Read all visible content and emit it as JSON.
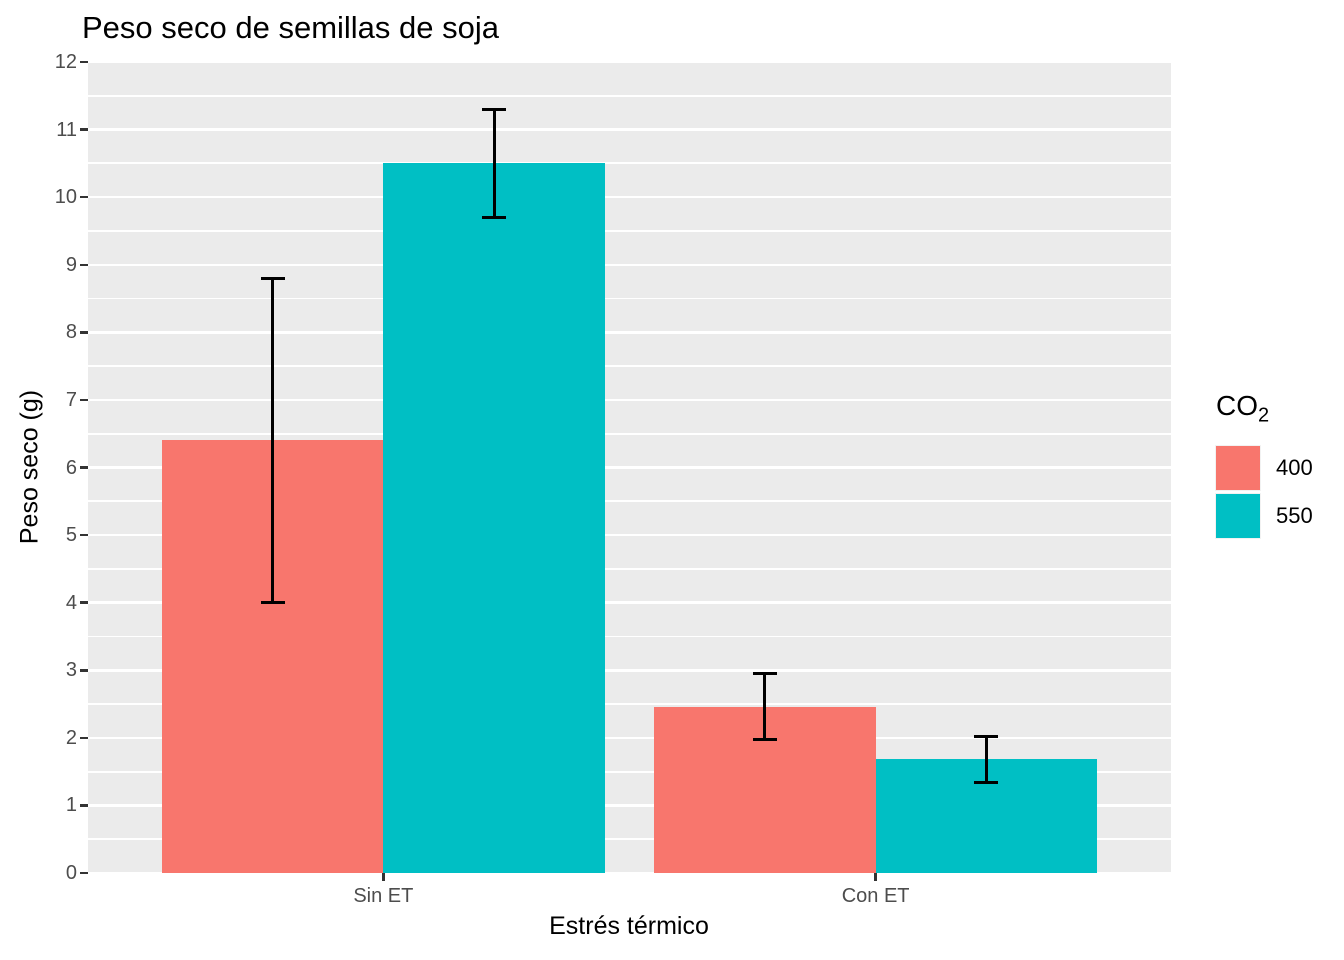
{
  "chart_data": {
    "type": "bar",
    "title": "Peso seco de semillas de soja",
    "xlabel": "Estrés térmico",
    "ylabel": "Peso seco (g)",
    "categories": [
      "Sin ET",
      "Con ET"
    ],
    "ylim": [
      0,
      12
    ],
    "yticks": [
      0,
      1,
      2,
      3,
      4,
      5,
      6,
      7,
      8,
      9,
      10,
      11,
      12
    ],
    "minor_tick_interval": 0.5,
    "grid": "white major and minor horizontal gridlines on grey panel",
    "bar_layout": "dodged",
    "legend": {
      "title_main": "CO",
      "title_sub": "2",
      "position": "right",
      "entries": [
        "400",
        "550"
      ]
    },
    "series": [
      {
        "name": "400",
        "color": "#F8766D",
        "values": [
          6.4,
          2.45
        ],
        "error_low": [
          4.0,
          1.98
        ],
        "error_high": [
          8.8,
          2.95
        ]
      },
      {
        "name": "550",
        "color": "#00BFC4",
        "values": [
          10.5,
          1.68
        ],
        "error_low": [
          9.7,
          1.34
        ],
        "error_high": [
          11.3,
          2.02
        ]
      }
    ],
    "colors": {
      "panel_bg": "#EBEBEB",
      "gridline": "#FFFFFF",
      "tick_text": "#4D4D4D",
      "tick_mark": "#333333",
      "title_text": "#000000",
      "error_bar": "#000000",
      "legend_key_bg": "#F2F2F2"
    }
  }
}
